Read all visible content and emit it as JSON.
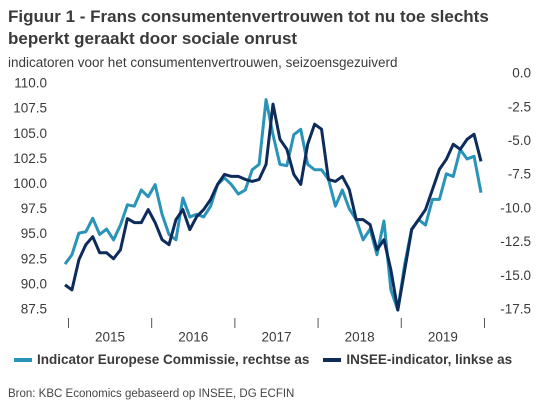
{
  "chart_data": {
    "type": "line",
    "title": "Figuur 1 - Frans consumentenvertrouwen tot nu toe slechts beperkt geraakt door sociale onrust",
    "subtitle": "indicatoren voor het consumentenvertrouwen, seizoensgezuiverd",
    "source": "Bron: KBC Economics gebaseerd op INSEE, DG ECFIN",
    "categories": [
      null,
      null,
      null,
      null,
      null,
      null,
      "2015",
      null,
      null,
      null,
      null,
      null,
      null,
      null,
      null,
      null,
      null,
      null,
      "2016",
      null,
      null,
      null,
      null,
      null,
      null,
      null,
      null,
      null,
      null,
      null,
      "2017",
      null,
      null,
      null,
      null,
      null,
      null,
      null,
      null,
      null,
      null,
      null,
      "2018",
      null,
      null,
      null,
      null,
      null,
      null,
      null,
      null,
      null,
      null,
      null,
      "2019",
      null,
      null,
      null,
      null,
      null,
      null
    ],
    "series": [
      {
        "name": "Indicator Europese Commissie, rechtse as",
        "color": "#2a93b8",
        "axis": "y2",
        "values": [
          -14.1,
          -13.4,
          -11.8,
          -11.7,
          -10.7,
          -11.9,
          -11.5,
          -12.3,
          -11.2,
          -9.7,
          -9.8,
          -8.6,
          -9.1,
          -8.2,
          -10.4,
          -11.9,
          -12.3,
          -9.2,
          -10.6,
          -10.4,
          -10.6,
          -9.8,
          -8.2,
          -7.7,
          -8.2,
          -8.9,
          -8.6,
          -7.1,
          -6.7,
          -1.9,
          -4.5,
          -6.7,
          -6.8,
          -4.5,
          -4.1,
          -6.7,
          -7.1,
          -7.1,
          -7.8,
          -9.8,
          -8.6,
          -10.0,
          -10.8,
          -12.3,
          -11.5,
          -13.4,
          -10.9,
          -16.0,
          -17.5,
          -14.1,
          -11.5,
          -10.8,
          -11.2,
          -9.3,
          -9.3,
          -7.4,
          -7.6,
          -5.6,
          -6.3,
          -6.1,
          -8.8
        ]
      },
      {
        "name": "INSEE-indicator, linkse as",
        "color": "#0d2b5b",
        "values": [
          90.0,
          89.5,
          92.5,
          94.0,
          94.8,
          93.2,
          93.2,
          92.6,
          93.5,
          96.6,
          96.2,
          96.2,
          97.5,
          96.2,
          94.5,
          94.0,
          96.5,
          97.5,
          95.5,
          96.8,
          97.5,
          98.5,
          100.0,
          101.0,
          100.8,
          100.8,
          100.5,
          100.3,
          100.5,
          102.0,
          108.0,
          104.5,
          103.5,
          101.0,
          100.0,
          104.0,
          106.0,
          105.5,
          100.5,
          100.3,
          100.8,
          99.5,
          96.5,
          96.5,
          96.0,
          93.5,
          94.5,
          91.5,
          87.5,
          91.5,
          95.5,
          96.5,
          97.5,
          99.5,
          101.5,
          102.5,
          104.0,
          103.5,
          104.5,
          105.0,
          102.3
        ]
      }
    ],
    "ylim": [
      87.5,
      110
    ],
    "yticks": [
      87.5,
      {
        "value": 90,
        "label": "90.0"
      },
      92.5,
      {
        "value": 95,
        "label": "95.0"
      },
      97.5,
      {
        "value": 100,
        "label": "100.0"
      },
      102.5,
      {
        "value": 105,
        "label": "105.0"
      },
      107.5,
      {
        "value": 110,
        "label": "110.0"
      }
    ],
    "y2lim": [
      -17.5,
      0
    ],
    "y2ticks": [
      -17.5,
      {
        "value": -15,
        "label": "-15.0"
      },
      -12.5,
      {
        "value": -10,
        "label": "-10.0"
      },
      -7.5,
      {
        "value": -5,
        "label": "-5.0"
      },
      -2.5,
      {
        "value": 0,
        "label": "0.0"
      }
    ],
    "grid": false,
    "legend": "bottom"
  }
}
